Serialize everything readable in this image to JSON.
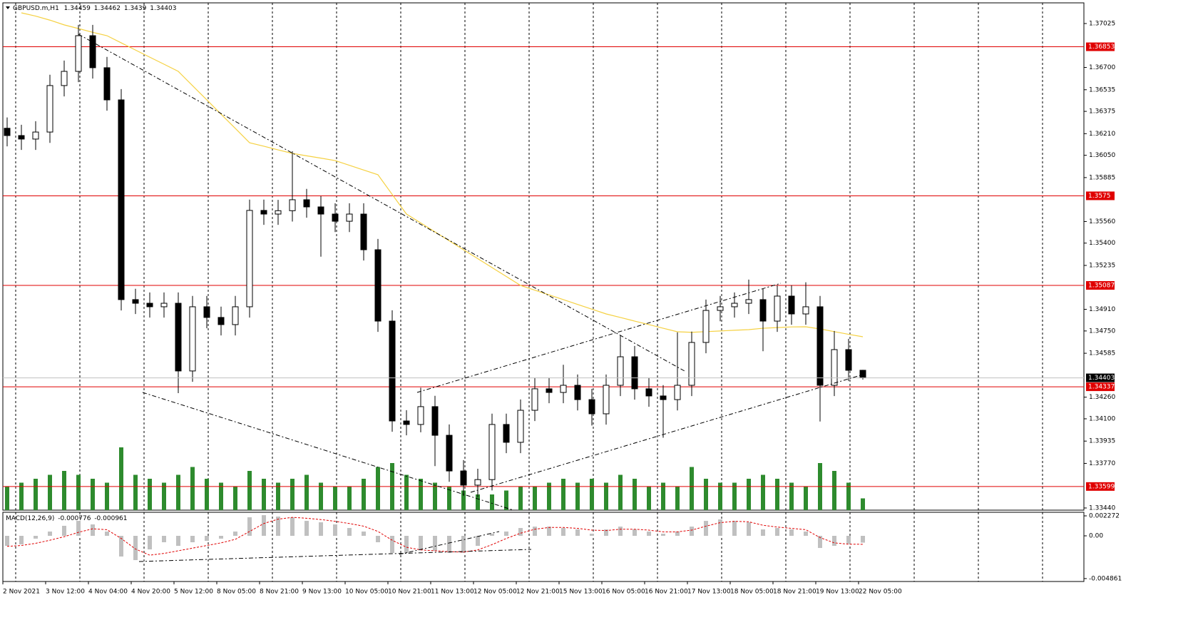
{
  "chart_data": {
    "type": "candlestick",
    "symbol": "GBPUSD.m,H1",
    "open": [
      1.3625,
      1.36196,
      1.3617,
      1.36222,
      1.36566,
      1.36671,
      1.36935,
      1.36698,
      1.3646,
      1.34982,
      1.34955,
      1.34929,
      1.34955,
      1.34454,
      1.34929,
      1.3485,
      1.34797,
      1.34929,
      1.35642,
      1.35615,
      1.3564,
      1.35721,
      1.35668,
      1.35615,
      1.35562,
      1.35615,
      1.35351,
      1.34823,
      1.34084,
      1.34058,
      1.3419,
      1.33978,
      1.33714,
      1.33609,
      1.3365,
      1.34058,
      1.33926,
      1.34163,
      1.34322,
      1.34295,
      1.34348,
      1.34242,
      1.34137,
      1.34348,
      1.34559,
      1.34322,
      1.34269,
      1.34242,
      1.34348,
      1.34665,
      1.34902,
      1.34929,
      1.34955,
      1.34982,
      1.34823,
      1.35008,
      1.34876,
      1.34929,
      1.34348,
      1.34612,
      1.34459
    ],
    "high": [
      1.3633,
      1.36276,
      1.36302,
      1.36646,
      1.36751,
      1.37015,
      1.37015,
      1.36778,
      1.3654,
      1.35062,
      1.35035,
      1.35035,
      1.35035,
      1.35009,
      1.35009,
      1.3493,
      1.35009,
      1.35722,
      1.35722,
      1.3572,
      1.3608,
      1.35801,
      1.35748,
      1.35695,
      1.35695,
      1.35695,
      1.35431,
      1.34903,
      1.34164,
      1.3433,
      1.3427,
      1.34058,
      1.33794,
      1.3373,
      1.34138,
      1.34138,
      1.34243,
      1.34402,
      1.34402,
      1.345,
      1.34428,
      1.34322,
      1.34428,
      1.3472,
      1.34639,
      1.34402,
      1.34349,
      1.3474,
      1.34745,
      1.34982,
      1.35009,
      1.35035,
      1.3513,
      1.35062,
      1.35088,
      1.35088,
      1.3511,
      1.35009,
      1.3475,
      1.34692,
      1.34462
    ],
    "low": [
      1.36116,
      1.3609,
      1.3609,
      1.36142,
      1.36486,
      1.36591,
      1.36618,
      1.3638,
      1.34902,
      1.34875,
      1.34849,
      1.34849,
      1.3429,
      1.34374,
      1.3477,
      1.34717,
      1.34717,
      1.34849,
      1.35535,
      1.35535,
      1.3556,
      1.35588,
      1.353,
      1.35482,
      1.35482,
      1.35271,
      1.34743,
      1.34004,
      1.33978,
      1.34,
      1.3375,
      1.33634,
      1.33529,
      1.3352,
      1.3357,
      1.33846,
      1.33846,
      1.34083,
      1.34215,
      1.34215,
      1.34162,
      1.3405,
      1.34057,
      1.34268,
      1.34242,
      1.34189,
      1.3396,
      1.34162,
      1.34268,
      1.34585,
      1.34822,
      1.34849,
      1.34875,
      1.346,
      1.34743,
      1.34796,
      1.34796,
      1.3408,
      1.34268,
      1.34379,
      1.3439
    ],
    "close": [
      1.36196,
      1.3617,
      1.36222,
      1.36566,
      1.36671,
      1.36935,
      1.36698,
      1.3646,
      1.34982,
      1.34955,
      1.34929,
      1.34955,
      1.34454,
      1.34929,
      1.3485,
      1.34797,
      1.34929,
      1.35642,
      1.35615,
      1.3564,
      1.35721,
      1.35668,
      1.35615,
      1.35562,
      1.35615,
      1.35351,
      1.34823,
      1.34084,
      1.34058,
      1.3419,
      1.33978,
      1.33714,
      1.33609,
      1.3365,
      1.34058,
      1.33926,
      1.34163,
      1.34322,
      1.34295,
      1.34348,
      1.34242,
      1.34137,
      1.34348,
      1.34559,
      1.34322,
      1.34269,
      1.34242,
      1.34348,
      1.34665,
      1.34902,
      1.34929,
      1.34955,
      1.34982,
      1.34823,
      1.35008,
      1.34876,
      1.34929,
      1.34348,
      1.34612,
      1.34459,
      1.34403
    ],
    "ma": [
      null,
      1.37104,
      1.3708,
      1.3705,
      1.37015,
      1.36988,
      1.3696,
      1.36935,
      1.36882,
      1.36829,
      1.36776,
      1.36724,
      1.36671,
      1.36565,
      1.3646,
      1.36354,
      1.36249,
      1.36143,
      1.36117,
      1.3609,
      1.36064,
      1.36046,
      1.36029,
      1.36011,
      1.35976,
      1.35941,
      1.35906,
      1.3576,
      1.35615,
      1.35549,
      1.35483,
      1.35417,
      1.35351,
      1.35285,
      1.35219,
      1.35153,
      1.35087,
      1.35052,
      1.35017,
      1.34982,
      1.34946,
      1.34911,
      1.34876,
      1.3485,
      1.34823,
      1.34797,
      1.3477,
      1.34744,
      1.3474,
      1.34745,
      1.3475,
      1.34755,
      1.3476,
      1.3477,
      1.34775,
      1.3478,
      1.34781,
      1.34765,
      1.34745,
      1.34725,
      1.34707
    ],
    "ma_color": "#f5d142",
    "volume": [
      30,
      35,
      40,
      45,
      50,
      45,
      40,
      35,
      80,
      45,
      40,
      35,
      45,
      55,
      40,
      35,
      30,
      50,
      40,
      35,
      40,
      45,
      35,
      30,
      30,
      40,
      55,
      60,
      45,
      40,
      35,
      30,
      25,
      20,
      20,
      25,
      30,
      30,
      35,
      40,
      35,
      40,
      35,
      45,
      40,
      30,
      35,
      30,
      55,
      40,
      35,
      35,
      40,
      45,
      40,
      35,
      30,
      60,
      50,
      35,
      15
    ],
    "volume_color": "#2e8b2e",
    "ylim": [
      1.33424,
      1.37178
    ],
    "yticks": [
      {
        "value": 1.37025,
        "label": "1.37025"
      },
      {
        "value": 1.367,
        "label": "1.36700"
      },
      {
        "value": 1.36535,
        "label": "1.36535"
      },
      {
        "value": 1.36375,
        "label": "1.36375"
      },
      {
        "value": 1.3621,
        "label": "1.36210"
      },
      {
        "value": 1.3605,
        "label": "1.36050"
      },
      {
        "value": 1.35885,
        "label": "1.35885"
      },
      {
        "value": 1.3556,
        "label": "1.35560"
      },
      {
        "value": 1.354,
        "label": "1.35400"
      },
      {
        "value": 1.35235,
        "label": "1.35235"
      },
      {
        "value": 1.3491,
        "label": "1.34910"
      },
      {
        "value": 1.3475,
        "label": "1.34750"
      },
      {
        "value": 1.34585,
        "label": "1.34585"
      },
      {
        "value": 1.3426,
        "label": "1.34260"
      },
      {
        "value": 1.341,
        "label": "1.34100"
      },
      {
        "value": 1.33935,
        "label": "1.33935"
      },
      {
        "value": 1.3377,
        "label": "1.33770"
      },
      {
        "value": 1.3344,
        "label": "1.33440"
      }
    ],
    "levels": [
      1.36853,
      1.3575,
      1.35087,
      1.34337,
      1.33599
    ],
    "level_color": "#e00000",
    "xlabels": [
      "2 Nov 2021",
      "3 Nov 12:00",
      "4 Nov 04:00",
      "4 Nov 20:00",
      "5 Nov 12:00",
      "8 Nov 05:00",
      "8 Nov 21:00",
      "9 Nov 13:00",
      "10 Nov 05:00",
      "10 Nov 21:00",
      "11 Nov 13:00",
      "12 Nov 05:00",
      "12 Nov 21:00",
      "15 Nov 13:00",
      "16 Nov 05:00",
      "16 Nov 21:00",
      "17 Nov 13:00",
      "18 Nov 05:00",
      "18 Nov 21:00",
      "19 Nov 13:00",
      "22 Nov 05:00"
    ],
    "macd": {
      "title": "MACD(12,26,9)",
      "hist": [
        -0.00114,
        -0.00097,
        -0.00032,
        0.00049,
        0.00114,
        0.0017,
        0.0013,
        0.00049,
        -0.00235,
        -0.00276,
        -0.00154,
        -0.00073,
        -0.00114,
        -0.00073,
        -0.00057,
        -0.00032,
        0.00049,
        0.00211,
        0.00235,
        0.00219,
        0.00211,
        0.0017,
        0.00154,
        0.0013,
        0.00089,
        0.00049,
        -0.00073,
        -0.00195,
        -0.00195,
        -0.00154,
        -0.0017,
        -0.00195,
        -0.00195,
        -0.00114,
        0.00024,
        0.00049,
        0.00089,
        0.00105,
        0.00105,
        0.00089,
        0.00073,
        0.00024,
        0.00073,
        0.00105,
        0.00073,
        0.00049,
        0.00024,
        0.00049,
        0.00105,
        0.0017,
        0.00187,
        0.0017,
        0.00154,
        0.00073,
        0.00089,
        0.00073,
        0.00049,
        -0.00138,
        -0.00114,
        -0.00089,
        -0.000776
      ],
      "signal": [
        -0.0012,
        -0.0011,
        -0.00085,
        -0.0005,
        -0.0001,
        0.0004,
        0.0008,
        0.0007,
        -0.0003,
        -0.0015,
        -0.0022,
        -0.002,
        -0.0017,
        -0.0014,
        -0.0011,
        -0.0008,
        -0.0004,
        0.0005,
        0.0014,
        0.0019,
        0.0021,
        0.002,
        0.00185,
        0.00165,
        0.0014,
        0.0011,
        0.0005,
        -0.0005,
        -0.0013,
        -0.0016,
        -0.0017,
        -0.0018,
        -0.00185,
        -0.0016,
        -0.001,
        -0.0003,
        0.0003,
        0.00075,
        0.00095,
        0.00095,
        0.00085,
        0.00065,
        0.0006,
        0.00075,
        0.00075,
        0.00065,
        0.00045,
        0.00045,
        0.00065,
        0.0011,
        0.0015,
        0.00165,
        0.0016,
        0.0012,
        0.001,
        0.00085,
        0.0007,
        -0.0002,
        -0.0008,
        -0.00095,
        -0.000961
      ],
      "hist_color": "#c0c0c0",
      "signal_color": "#e00000",
      "ylim": [
        -0.005193,
        0.002678
      ],
      "yticks": [
        0.002272,
        {
          "value": 0,
          "label": "0.00"
        },
        -0.004861
      ]
    }
  }
}
